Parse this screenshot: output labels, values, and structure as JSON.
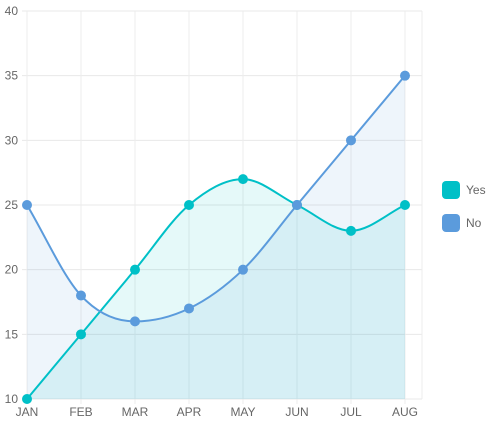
{
  "chart_data": {
    "type": "area",
    "categories": [
      "JAN",
      "FEB",
      "MAR",
      "APR",
      "MAY",
      "JUN",
      "JUL",
      "AUG"
    ],
    "series": [
      {
        "name": "Yes",
        "values": [
          10,
          15,
          20,
          25,
          27,
          25,
          23,
          25
        ],
        "color": "#00c0c7",
        "fill": "rgba(0,192,199,0.10)"
      },
      {
        "name": "No",
        "values": [
          25,
          18,
          16,
          17,
          20,
          25,
          30,
          35
        ],
        "color": "#5b9bdc",
        "fill": "rgba(91,155,220,0.10)"
      }
    ],
    "y_ticks": [
      "10",
      "15",
      "20",
      "25",
      "30",
      "35",
      "40"
    ],
    "ylim": [
      10,
      40
    ],
    "grid": true,
    "legend_position": "right",
    "title": "",
    "xlabel": "",
    "ylabel": ""
  }
}
